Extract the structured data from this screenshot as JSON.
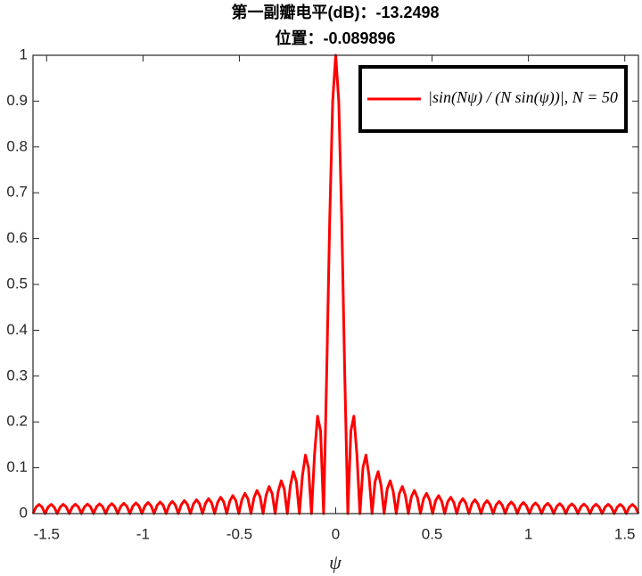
{
  "chart_data": {
    "type": "line",
    "title": [
      "第一副瓣电平(dB)：-13.2498",
      "位置：-0.089896"
    ],
    "xlabel": "ψ",
    "xlim": [
      -1.5708,
      1.5708
    ],
    "xticks": [
      -1.5,
      -1,
      -0.5,
      0,
      0.5,
      1,
      1.5
    ],
    "ylim": [
      0,
      1
    ],
    "yticks": [
      0,
      0.1,
      0.2,
      0.3,
      0.4,
      0.5,
      0.6,
      0.7,
      0.8,
      0.9,
      1
    ],
    "grid": false,
    "legend_location": "northeast",
    "x": [
      -1.5708,
      -1.5551,
      -1.5394,
      -1.5237,
      -1.508,
      -1.4923,
      -1.4765,
      -1.4608,
      -1.4451,
      -1.4294,
      -1.4137,
      -1.398,
      -1.3823,
      -1.3666,
      -1.3509,
      -1.3352,
      -1.3195,
      -1.3038,
      -1.2881,
      -1.2723,
      -1.2566,
      -1.2409,
      -1.2252,
      -1.2095,
      -1.1938,
      -1.1781,
      -1.1624,
      -1.1467,
      -1.131,
      -1.1153,
      -1.0996,
      -1.0838,
      -1.0681,
      -1.0524,
      -1.0367,
      -1.021,
      -1.0053,
      -0.9896,
      -0.9739,
      -0.9582,
      -0.9425,
      -0.9268,
      -0.9111,
      -0.8954,
      -0.8796,
      -0.8639,
      -0.8482,
      -0.8325,
      -0.8168,
      -0.8011,
      -0.7854,
      -0.7697,
      -0.754,
      -0.7383,
      -0.7226,
      -0.7069,
      -0.6912,
      -0.6754,
      -0.6597,
      -0.644,
      -0.6283,
      -0.6126,
      -0.5969,
      -0.5812,
      -0.5655,
      -0.5498,
      -0.5341,
      -0.5184,
      -0.5027,
      -0.4869,
      -0.4712,
      -0.4555,
      -0.4398,
      -0.4241,
      -0.4084,
      -0.3927,
      -0.377,
      -0.3613,
      -0.3456,
      -0.3299,
      -0.3142,
      -0.2985,
      -0.2827,
      -0.267,
      -0.2513,
      -0.2356,
      -0.2199,
      -0.2042,
      -0.1885,
      -0.1728,
      -0.1571,
      -0.1414,
      -0.1257,
      -0.11,
      -0.0942,
      -0.0785,
      -0.0628,
      -0.0471,
      -0.0314,
      -0.0157,
      0,
      0.0157,
      0.0314,
      0.0471,
      0.0628,
      0.0785,
      0.0942,
      0.11,
      0.1257,
      0.1414,
      0.1571,
      0.1728,
      0.1885,
      0.2042,
      0.2199,
      0.2356,
      0.2513,
      0.267,
      0.2827,
      0.2985,
      0.3142,
      0.3299,
      0.3456,
      0.3613,
      0.377,
      0.3927,
      0.4084,
      0.4241,
      0.4398,
      0.4555,
      0.4712,
      0.4869,
      0.5027,
      0.5184,
      0.5341,
      0.5498,
      0.5655,
      0.5812,
      0.5969,
      0.6126,
      0.6283,
      0.644,
      0.6597,
      0.6754,
      0.6912,
      0.7069,
      0.7226,
      0.7383,
      0.754,
      0.7697,
      0.7854,
      0.8011,
      0.8168,
      0.8325,
      0.8482,
      0.8639,
      0.8796,
      0.8954,
      0.9111,
      0.9268,
      0.9425,
      0.9582,
      0.9739,
      0.9896,
      1.0053,
      1.021,
      1.0367,
      1.0524,
      1.0681,
      1.0838,
      1.0996,
      1.1153,
      1.131,
      1.1467,
      1.1624,
      1.1781,
      1.1938,
      1.2095,
      1.2252,
      1.2409,
      1.2566,
      1.2723,
      1.2881,
      1.3038,
      1.3195,
      1.3352,
      1.3509,
      1.3666,
      1.3823,
      1.398,
      1.4137,
      1.4294,
      1.4451,
      1.4608,
      1.4765,
      1.4923,
      1.508,
      1.5237,
      1.5394,
      1.5551,
      1.5708
    ],
    "series": [
      {
        "name": "|sin(Nψ) / (N sin(ψ))|, N = 50",
        "color": "#ff0000",
        "values": [
          0,
          0.0141,
          0.02,
          0.0142,
          0,
          0.0142,
          0.0201,
          0.0142,
          0,
          0.0143,
          0.0202,
          0.0144,
          0,
          0.0144,
          0.0205,
          0.0145,
          0,
          0.0147,
          0.0208,
          0.0148,
          0,
          0.0149,
          0.0213,
          0.0151,
          0,
          0.0153,
          0.0218,
          0.0155,
          0,
          0.0157,
          0.0224,
          0.016,
          0,
          0.0163,
          0.0232,
          0.0166,
          0,
          0.0169,
          0.0242,
          0.0173,
          0,
          0.0177,
          0.0253,
          0.0181,
          0,
          0.0186,
          0.0267,
          0.0191,
          0,
          0.0197,
          0.0283,
          0.0203,
          0,
          0.021,
          0.0302,
          0.0218,
          0,
          0.0226,
          0.0326,
          0.0236,
          0,
          0.0246,
          0.0356,
          0.0258,
          0,
          0.0271,
          0.0393,
          0.0285,
          0,
          0.0302,
          0.0441,
          0.0321,
          0,
          0.0344,
          0.0504,
          0.037,
          0,
          0.04,
          0.059,
          0.0437,
          0,
          0.0481,
          0.0717,
          0.0536,
          0,
          0.0606,
          0.0917,
          0.0697,
          0,
          0.0823,
          0.1278,
          0.1004,
          0,
          0.1289,
          0.2125,
          0.1802,
          0,
          0.3002,
          0.6367,
          0.9003,
          1,
          0.9003,
          0.6367,
          0.3002,
          0,
          0.1802,
          0.2125,
          0.1289,
          0,
          0.1004,
          0.1278,
          0.0823,
          0,
          0.0697,
          0.0917,
          0.0606,
          0,
          0.0536,
          0.0717,
          0.0481,
          0,
          0.0437,
          0.059,
          0.04,
          0,
          0.037,
          0.0504,
          0.0344,
          0,
          0.0321,
          0.0441,
          0.0302,
          0,
          0.0285,
          0.0393,
          0.0271,
          0,
          0.0258,
          0.0356,
          0.0246,
          0,
          0.0236,
          0.0326,
          0.0226,
          0,
          0.0218,
          0.0302,
          0.021,
          0,
          0.0203,
          0.0283,
          0.0197,
          0,
          0.0191,
          0.0267,
          0.0186,
          0,
          0.0181,
          0.0253,
          0.0177,
          0,
          0.0173,
          0.0242,
          0.0169,
          0,
          0.0166,
          0.0232,
          0.0163,
          0,
          0.016,
          0.0224,
          0.0157,
          0,
          0.0155,
          0.0218,
          0.0153,
          0,
          0.0151,
          0.0213,
          0.0149,
          0,
          0.0148,
          0.0208,
          0.0147,
          0,
          0.0145,
          0.0205,
          0.0144,
          0,
          0.0144,
          0.0202,
          0.0143,
          0,
          0.0142,
          0.0201,
          0.0142,
          0,
          0.0142,
          0.02,
          0.0141,
          0
        ]
      }
    ]
  }
}
